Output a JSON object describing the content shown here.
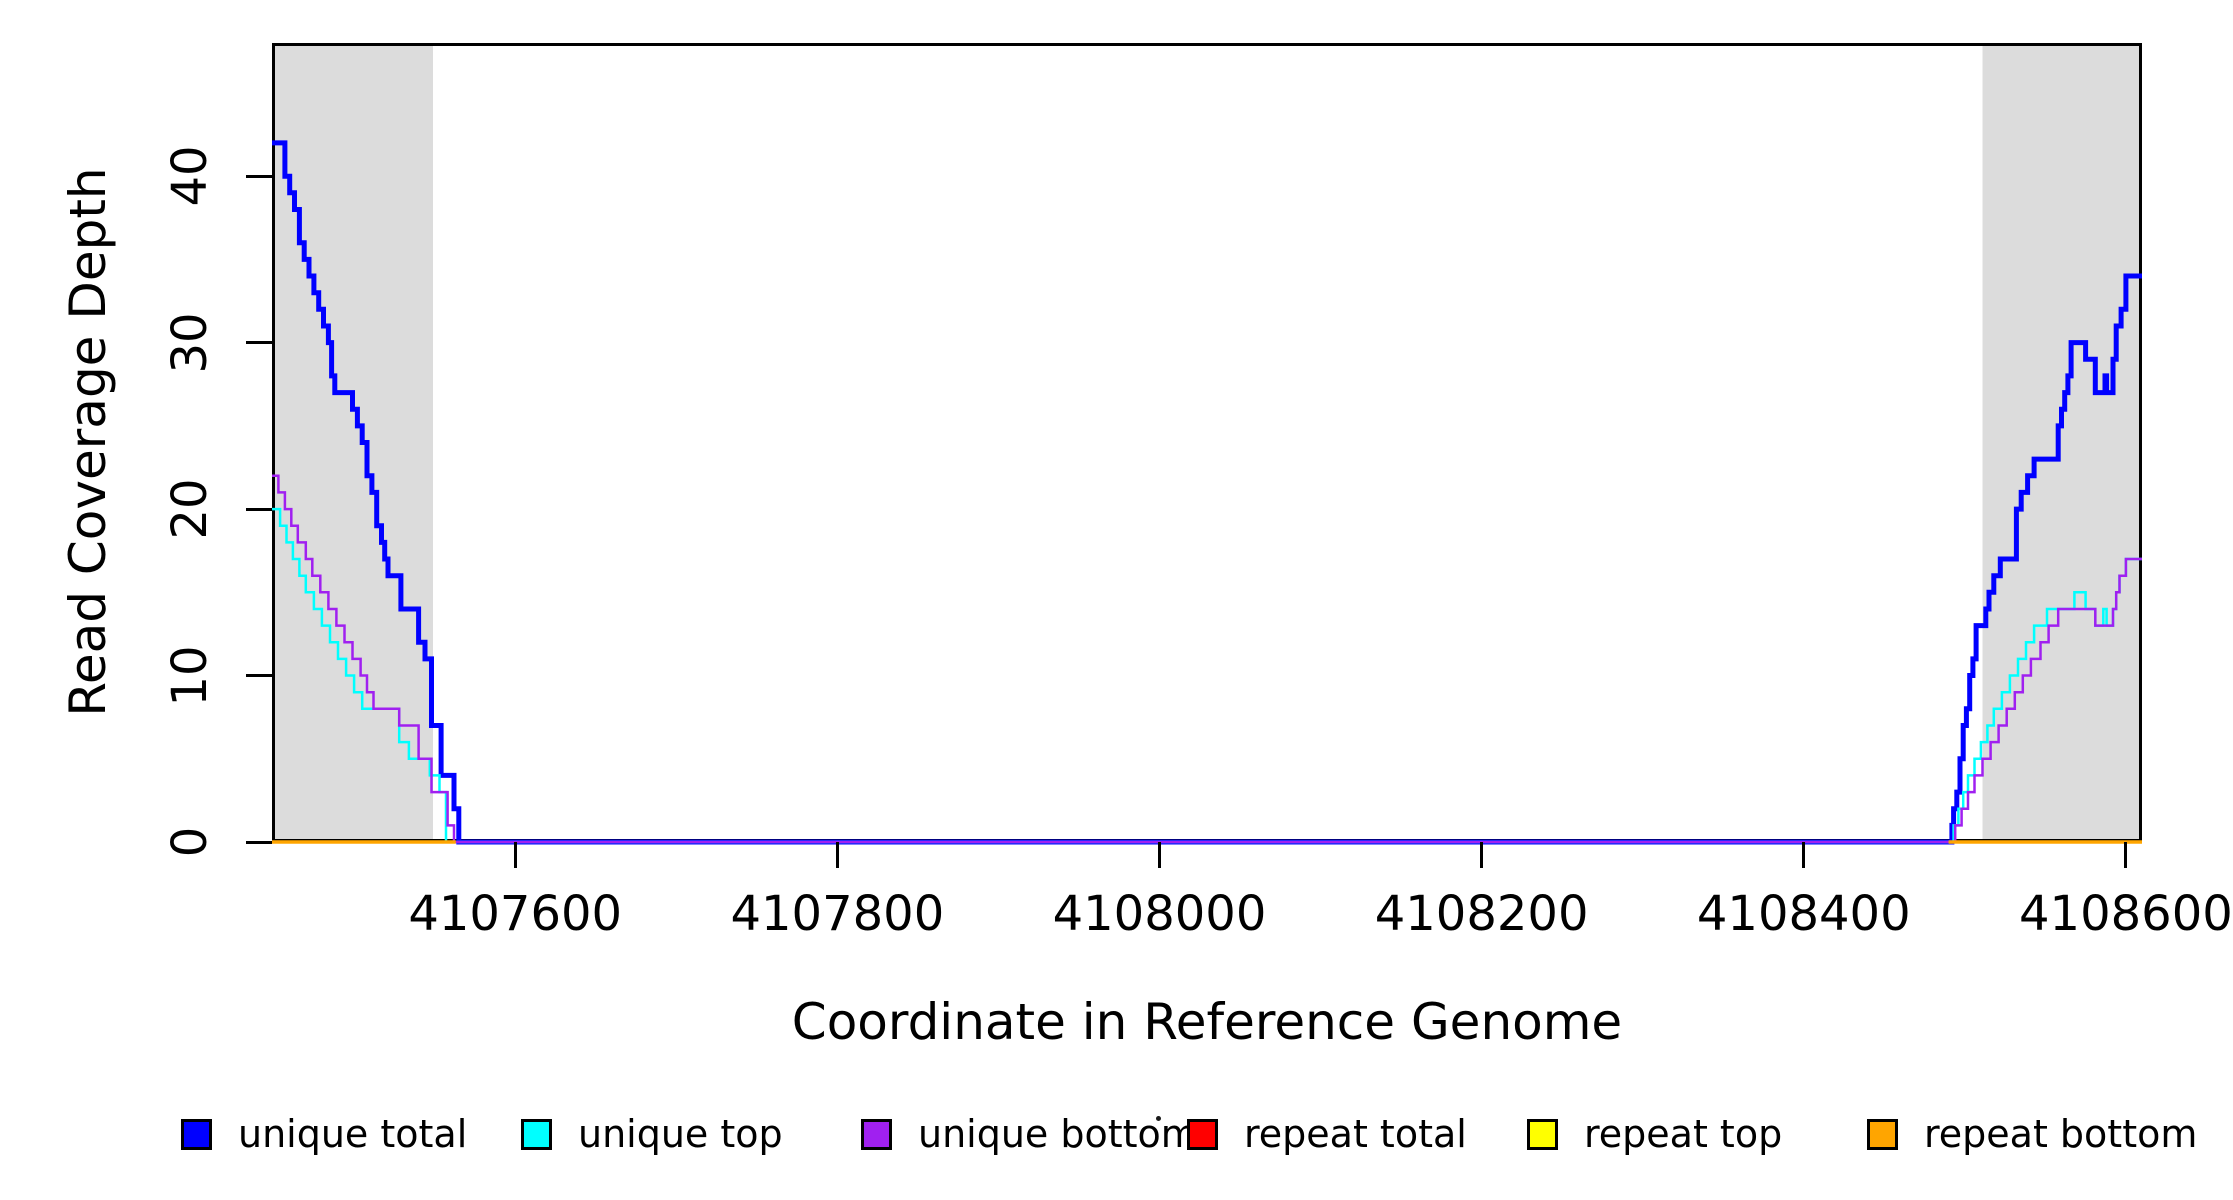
{
  "figure": {
    "background_color": "#FFFFFF",
    "highlight_color": "#DCDCDC"
  },
  "legend": {
    "position": "bottom",
    "items": [
      {
        "label": "unique total",
        "color": "#0000FF"
      },
      {
        "label": "unique top",
        "color": "#00FFFF"
      },
      {
        "label": "unique bottom",
        "color": "#A020F0"
      },
      {
        "label": "repeat total",
        "color": "#FF0000"
      },
      {
        "label": "repeat top",
        "color": "#FFFF00"
      },
      {
        "label": "repeat bottom",
        "color": "#FFA500"
      }
    ]
  },
  "chart_data": {
    "type": "line",
    "subtype": "step",
    "title": "",
    "xlabel": "Coordinate in Reference Genome",
    "ylabel": "Read Coverage Depth",
    "xlim": [
      4107449,
      4108610
    ],
    "ylim": [
      0,
      48
    ],
    "x_ticks": [
      4107600,
      4107800,
      4108000,
      4108200,
      4108400,
      4108600
    ],
    "x_tick_labels": [
      "4107600",
      "4107800",
      "4108000",
      "4108200",
      "4108400",
      "4108600"
    ],
    "y_ticks": [
      0,
      10,
      20,
      30,
      40
    ],
    "y_tick_labels": [
      "0",
      "10",
      "20",
      "30",
      "40"
    ],
    "grid": false,
    "legend_position": "bottom",
    "highlight_regions": [
      {
        "x1": 4107449,
        "x2": 4107549,
        "color": "#DCDCDC",
        "meaning": "repeat region (left flank)"
      },
      {
        "x1": 4108511,
        "x2": 4108610,
        "color": "#DCDCDC",
        "meaning": "repeat region (right flank)"
      }
    ],
    "series": [
      {
        "name": "unique total",
        "color": "#0000FF",
        "stroke_width": 5,
        "style": "step",
        "points": [
          [
            4107449,
            42
          ],
          [
            4107457,
            40
          ],
          [
            4107460,
            39
          ],
          [
            4107463,
            38
          ],
          [
            4107466,
            36
          ],
          [
            4107469,
            35
          ],
          [
            4107472,
            34
          ],
          [
            4107475,
            33
          ],
          [
            4107478,
            32
          ],
          [
            4107481,
            31
          ],
          [
            4107484,
            30
          ],
          [
            4107486,
            28
          ],
          [
            4107488,
            27
          ],
          [
            4107499,
            26
          ],
          [
            4107502,
            25
          ],
          [
            4107505,
            24
          ],
          [
            4107508,
            22
          ],
          [
            4107511,
            21
          ],
          [
            4107514,
            19
          ],
          [
            4107517,
            18
          ],
          [
            4107519,
            17
          ],
          [
            4107521,
            16
          ],
          [
            4107529,
            14
          ],
          [
            4107540,
            12
          ],
          [
            4107544,
            11
          ],
          [
            4107548,
            7
          ],
          [
            4107554,
            4
          ],
          [
            4107562,
            2
          ],
          [
            4107565,
            0
          ],
          [
            4108492,
            1
          ],
          [
            4108493,
            2
          ],
          [
            4108495,
            3
          ],
          [
            4108497,
            5
          ],
          [
            4108499,
            7
          ],
          [
            4108501,
            8
          ],
          [
            4108503,
            10
          ],
          [
            4108505,
            11
          ],
          [
            4108507,
            13
          ],
          [
            4108513,
            14
          ],
          [
            4108515,
            15
          ],
          [
            4108518,
            16
          ],
          [
            4108522,
            17
          ],
          [
            4108532,
            20
          ],
          [
            4108535,
            21
          ],
          [
            4108539,
            22
          ],
          [
            4108543,
            23
          ],
          [
            4108558,
            25
          ],
          [
            4108560,
            26
          ],
          [
            4108562,
            27
          ],
          [
            4108564,
            28
          ],
          [
            4108566,
            30
          ],
          [
            4108575,
            29
          ],
          [
            4108581,
            27
          ],
          [
            4108587,
            28
          ],
          [
            4108588,
            27
          ],
          [
            4108592,
            29
          ],
          [
            4108594,
            31
          ],
          [
            4108597,
            32
          ],
          [
            4108600,
            34
          ]
        ]
      },
      {
        "name": "unique top",
        "color": "#00FFFF",
        "stroke_width": 2.5,
        "style": "step",
        "points": [
          [
            4107449,
            20
          ],
          [
            4107454,
            19
          ],
          [
            4107458,
            18
          ],
          [
            4107462,
            17
          ],
          [
            4107466,
            16
          ],
          [
            4107470,
            15
          ],
          [
            4107475,
            14
          ],
          [
            4107480,
            13
          ],
          [
            4107485,
            12
          ],
          [
            4107490,
            11
          ],
          [
            4107495,
            10
          ],
          [
            4107500,
            9
          ],
          [
            4107505,
            8
          ],
          [
            4107528,
            6
          ],
          [
            4107534,
            5
          ],
          [
            4107547,
            4
          ],
          [
            4107553,
            3
          ],
          [
            4107557,
            0
          ],
          [
            4108493,
            1
          ],
          [
            4108496,
            2
          ],
          [
            4108499,
            3
          ],
          [
            4108502,
            4
          ],
          [
            4108506,
            5
          ],
          [
            4108510,
            6
          ],
          [
            4108514,
            7
          ],
          [
            4108518,
            8
          ],
          [
            4108523,
            9
          ],
          [
            4108528,
            10
          ],
          [
            4108533,
            11
          ],
          [
            4108538,
            12
          ],
          [
            4108543,
            13
          ],
          [
            4108551,
            14
          ],
          [
            4108568,
            15
          ],
          [
            4108575,
            14
          ],
          [
            4108581,
            13
          ],
          [
            4108586,
            14
          ],
          [
            4108588,
            13
          ],
          [
            4108592,
            14
          ],
          [
            4108594,
            15
          ],
          [
            4108596,
            16
          ],
          [
            4108600,
            17
          ]
        ]
      },
      {
        "name": "unique bottom",
        "color": "#A020F0",
        "stroke_width": 2.5,
        "style": "step",
        "points": [
          [
            4107449,
            22
          ],
          [
            4107453,
            21
          ],
          [
            4107457,
            20
          ],
          [
            4107461,
            19
          ],
          [
            4107465,
            18
          ],
          [
            4107470,
            17
          ],
          [
            4107474,
            16
          ],
          [
            4107479,
            15
          ],
          [
            4107484,
            14
          ],
          [
            4107489,
            13
          ],
          [
            4107494,
            12
          ],
          [
            4107499,
            11
          ],
          [
            4107504,
            10
          ],
          [
            4107508,
            9
          ],
          [
            4107512,
            8
          ],
          [
            4107528,
            7
          ],
          [
            4107540,
            5
          ],
          [
            4107548,
            3
          ],
          [
            4107558,
            1
          ],
          [
            4107562,
            0
          ],
          [
            4108494,
            1
          ],
          [
            4108498,
            2
          ],
          [
            4108502,
            3
          ],
          [
            4108506,
            4
          ],
          [
            4108511,
            5
          ],
          [
            4108516,
            6
          ],
          [
            4108521,
            7
          ],
          [
            4108526,
            8
          ],
          [
            4108531,
            9
          ],
          [
            4108536,
            10
          ],
          [
            4108541,
            11
          ],
          [
            4108547,
            12
          ],
          [
            4108552,
            13
          ],
          [
            4108558,
            14
          ],
          [
            4108581,
            13
          ],
          [
            4108592,
            14
          ],
          [
            4108594,
            15
          ],
          [
            4108596,
            16
          ],
          [
            4108600,
            17
          ]
        ]
      },
      {
        "name": "repeat total",
        "color": "#FF0000",
        "stroke_width": 3,
        "style": "segments",
        "value": 0,
        "segments": [
          {
            "x1": 4107449,
            "x2": 4107563,
            "y": 0
          },
          {
            "x1": 4108490,
            "x2": 4108610,
            "y": 0
          }
        ]
      },
      {
        "name": "repeat top",
        "color": "#FFFF00",
        "stroke_width": 3,
        "style": "segments",
        "value": 0,
        "segments": [
          {
            "x1": 4107449,
            "x2": 4107563,
            "y": 0
          },
          {
            "x1": 4108490,
            "x2": 4108610,
            "y": 0
          }
        ]
      },
      {
        "name": "repeat bottom",
        "color": "#FFA500",
        "stroke_width": 3.5,
        "style": "segments",
        "value": 0,
        "segments": [
          {
            "x1": 4107449,
            "x2": 4107563,
            "y": 0
          },
          {
            "x1": 4108490,
            "x2": 4108610,
            "y": 0
          }
        ]
      }
    ]
  }
}
